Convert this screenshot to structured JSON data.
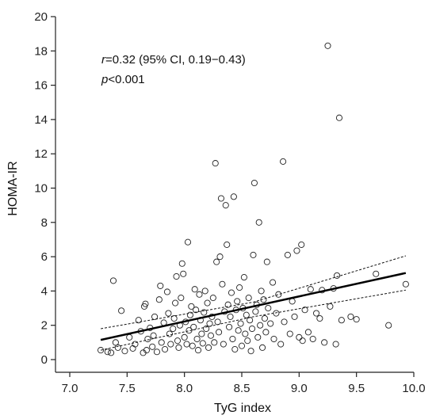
{
  "chart_data": {
    "type": "scatter",
    "xlabel": "TyG index",
    "ylabel": "HOMA-IR",
    "xlim": [
      7.0,
      10.0
    ],
    "ylim": [
      0,
      20
    ],
    "x_ticks": [
      "7.0",
      "7.5",
      "8.0",
      "8.5",
      "9.0",
      "9.5",
      "10.0"
    ],
    "y_ticks": [
      "0",
      "2",
      "4",
      "6",
      "8",
      "10",
      "12",
      "14",
      "16",
      "18",
      "20"
    ],
    "grid": false,
    "annotation": {
      "r_symbol": "r",
      "r_text": "=0.32 (95% CI, 0.19−0.43)",
      "p_symbol": "p",
      "p_text": "<0.001"
    },
    "regression": {
      "x": [
        7.27,
        9.93
      ],
      "y": [
        1.15,
        5.05
      ]
    },
    "ci_lower": {
      "x": [
        7.27,
        8.6,
        9.93
      ],
      "y": [
        0.55,
        2.5,
        4.05
      ]
    },
    "ci_upper": {
      "x": [
        7.27,
        8.6,
        9.93
      ],
      "y": [
        1.8,
        3.35,
        6.05
      ]
    },
    "points": [
      [
        7.27,
        0.55
      ],
      [
        7.33,
        0.45
      ],
      [
        7.36,
        0.4
      ],
      [
        7.38,
        4.6
      ],
      [
        7.4,
        1.0
      ],
      [
        7.42,
        0.7
      ],
      [
        7.45,
        2.85
      ],
      [
        7.48,
        0.5
      ],
      [
        7.52,
        1.3
      ],
      [
        7.55,
        0.65
      ],
      [
        7.57,
        0.9
      ],
      [
        7.6,
        2.3
      ],
      [
        7.62,
        1.65
      ],
      [
        7.64,
        0.4
      ],
      [
        7.65,
        3.1
      ],
      [
        7.66,
        3.25
      ],
      [
        7.67,
        0.55
      ],
      [
        7.68,
        1.2
      ],
      [
        7.7,
        1.85
      ],
      [
        7.72,
        0.75
      ],
      [
        7.73,
        1.4
      ],
      [
        7.74,
        2.5
      ],
      [
        7.76,
        0.45
      ],
      [
        7.78,
        3.5
      ],
      [
        7.79,
        4.3
      ],
      [
        7.8,
        1.0
      ],
      [
        7.82,
        2.15
      ],
      [
        7.83,
        0.6
      ],
      [
        7.85,
        3.95
      ],
      [
        7.86,
        2.7
      ],
      [
        7.87,
        1.5
      ],
      [
        7.88,
        0.9
      ],
      [
        7.9,
        1.8
      ],
      [
        7.91,
        2.4
      ],
      [
        7.92,
        3.3
      ],
      [
        7.93,
        4.85
      ],
      [
        7.94,
        1.1
      ],
      [
        7.95,
        0.7
      ],
      [
        7.96,
        2.0
      ],
      [
        7.97,
        3.6
      ],
      [
        7.98,
        5.6
      ],
      [
        7.99,
        5.0
      ],
      [
        8.0,
        1.3
      ],
      [
        8.01,
        2.2
      ],
      [
        8.02,
        0.9
      ],
      [
        8.03,
        6.85
      ],
      [
        8.04,
        1.7
      ],
      [
        8.05,
        2.6
      ],
      [
        8.06,
        3.1
      ],
      [
        8.07,
        0.8
      ],
      [
        8.08,
        1.9
      ],
      [
        8.09,
        4.1
      ],
      [
        8.1,
        2.9
      ],
      [
        8.11,
        1.2
      ],
      [
        8.12,
        0.55
      ],
      [
        8.13,
        3.8
      ],
      [
        8.14,
        2.3
      ],
      [
        8.15,
        1.5
      ],
      [
        8.16,
        0.95
      ],
      [
        8.17,
        2.75
      ],
      [
        8.18,
        4.0
      ],
      [
        8.19,
        1.8
      ],
      [
        8.2,
        3.3
      ],
      [
        8.21,
        0.7
      ],
      [
        8.22,
        2.1
      ],
      [
        8.23,
        1.4
      ],
      [
        8.24,
        2.5
      ],
      [
        8.25,
        3.6
      ],
      [
        8.26,
        1.0
      ],
      [
        8.27,
        11.45
      ],
      [
        8.28,
        5.7
      ],
      [
        8.29,
        2.2
      ],
      [
        8.3,
        1.6
      ],
      [
        8.31,
        6.0
      ],
      [
        8.32,
        9.4
      ],
      [
        8.33,
        4.4
      ],
      [
        8.34,
        0.9
      ],
      [
        8.35,
        2.8
      ],
      [
        8.36,
        9.0
      ],
      [
        8.37,
        6.7
      ],
      [
        8.38,
        3.2
      ],
      [
        8.39,
        1.9
      ],
      [
        8.4,
        2.5
      ],
      [
        8.41,
        3.9
      ],
      [
        8.42,
        1.2
      ],
      [
        8.43,
        9.5
      ],
      [
        8.44,
        0.6
      ],
      [
        8.45,
        2.9
      ],
      [
        8.46,
        3.4
      ],
      [
        8.47,
        1.7
      ],
      [
        8.48,
        4.2
      ],
      [
        8.49,
        2.1
      ],
      [
        8.5,
        0.8
      ],
      [
        8.51,
        3.0
      ],
      [
        8.52,
        4.8
      ],
      [
        8.53,
        1.5
      ],
      [
        8.54,
        2.6
      ],
      [
        8.55,
        1.1
      ],
      [
        8.56,
        3.6
      ],
      [
        8.57,
        2.3
      ],
      [
        8.58,
        0.5
      ],
      [
        8.59,
        1.8
      ],
      [
        8.6,
        6.1
      ],
      [
        8.61,
        10.3
      ],
      [
        8.62,
        2.8
      ],
      [
        8.63,
        3.2
      ],
      [
        8.64,
        1.3
      ],
      [
        8.65,
        8.0
      ],
      [
        8.66,
        2.0
      ],
      [
        8.67,
        4.0
      ],
      [
        8.68,
        0.7
      ],
      [
        8.69,
        3.5
      ],
      [
        8.7,
        2.4
      ],
      [
        8.71,
        1.6
      ],
      [
        8.72,
        5.7
      ],
      [
        8.73,
        3.0
      ],
      [
        8.75,
        2.1
      ],
      [
        8.77,
        4.5
      ],
      [
        8.78,
        1.2
      ],
      [
        8.8,
        2.7
      ],
      [
        8.82,
        3.8
      ],
      [
        8.84,
        0.9
      ],
      [
        8.86,
        11.55
      ],
      [
        8.87,
        2.2
      ],
      [
        8.9,
        6.1
      ],
      [
        8.92,
        1.5
      ],
      [
        8.94,
        3.4
      ],
      [
        8.96,
        2.5
      ],
      [
        8.98,
        6.35
      ],
      [
        9.0,
        1.3
      ],
      [
        9.02,
        6.7
      ],
      [
        9.03,
        1.1
      ],
      [
        9.05,
        2.9
      ],
      [
        9.08,
        1.6
      ],
      [
        9.1,
        4.1
      ],
      [
        9.12,
        1.2
      ],
      [
        9.15,
        2.7
      ],
      [
        9.18,
        2.4
      ],
      [
        9.2,
        4.05
      ],
      [
        9.22,
        1.0
      ],
      [
        9.25,
        18.3
      ],
      [
        9.27,
        3.1
      ],
      [
        9.3,
        4.15
      ],
      [
        9.32,
        0.9
      ],
      [
        9.33,
        4.9
      ],
      [
        9.35,
        14.1
      ],
      [
        9.37,
        2.3
      ],
      [
        9.45,
        2.5
      ],
      [
        9.5,
        2.35
      ],
      [
        9.67,
        5.0
      ],
      [
        9.78,
        2.0
      ],
      [
        9.93,
        4.4
      ]
    ]
  }
}
